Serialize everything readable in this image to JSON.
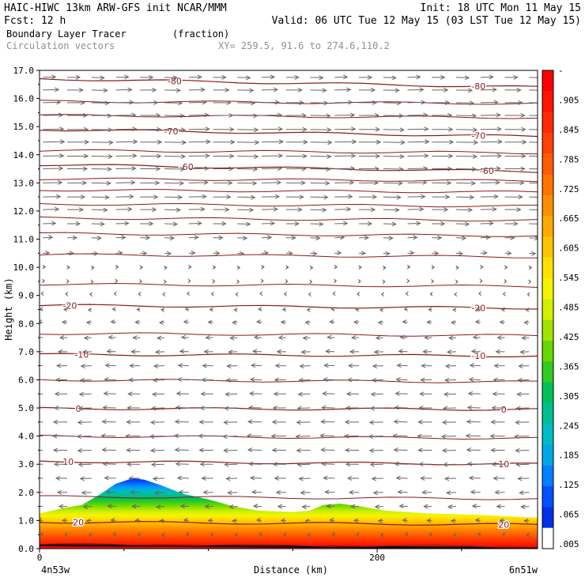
{
  "header": {
    "line1_left": "HAIC-HIWC 13km ARW-GFS init   NCAR/MMM",
    "line1_right": "Init: 18 UTC Mon 11 May 15",
    "line2_left": "Fcst:   12 h",
    "line2_right": "Valid: 06 UTC Tue 12 May 15 (03 LST Tue 12 May 15)",
    "field1": "Boundary Layer Tracer",
    "field1_units": "(fraction)",
    "field2": "Circulation vectors",
    "xy": "XY= 259.5, 91.6 to 274.6,110.2"
  },
  "chart_data": {
    "type": "heatmap",
    "title": "Boundary Layer Tracer",
    "units": "(fraction)",
    "xlabel": "Distance (km)",
    "ylabel": "Height (km)",
    "xlim": [
      0,
      295
    ],
    "ylim": [
      0,
      17
    ],
    "x_ticks": [
      {
        "value": 0,
        "label": "0"
      },
      {
        "value": 200,
        "label": "200"
      }
    ],
    "x_end_labels": {
      "left": "4n53w",
      "right": "6n51w"
    },
    "y_ticks": [
      "0.0",
      "1.0",
      "2.0",
      "3.0",
      "4.0",
      "5.0",
      "6.0",
      "7.0",
      "8.0",
      "9.0",
      "10.0",
      "11.0",
      "12.0",
      "13.0",
      "14.0",
      "15.0",
      "16.0",
      "17.0"
    ],
    "colorbar": {
      "labels": [
        "-",
        ".905",
        ".845",
        ".785",
        ".725",
        ".665",
        ".605",
        ".545",
        ".485",
        ".425",
        ".365",
        ".305",
        ".245",
        ".185",
        ".125",
        ".065",
        ".005"
      ],
      "colors": [
        "#ff0000",
        "#ff1400",
        "#ff2a00",
        "#ff4000",
        "#ff5a00",
        "#ff7400",
        "#ff8e00",
        "#ffaa00",
        "#ffc400",
        "#ffe000",
        "#f4f400",
        "#d2f000",
        "#a0e400",
        "#66d800",
        "#30cc20",
        "#00c05a",
        "#00c090",
        "#00bcc4",
        "#00a8e8",
        "#0080ff",
        "#0050ff",
        "#0030e8",
        "#ffffff"
      ]
    },
    "tracer_top_profile": [
      [
        0,
        1.25
      ],
      [
        15,
        1.45
      ],
      [
        25,
        1.55
      ],
      [
        35,
        1.9
      ],
      [
        45,
        2.3
      ],
      [
        55,
        2.5
      ],
      [
        62,
        2.45
      ],
      [
        72,
        2.25
      ],
      [
        85,
        1.95
      ],
      [
        100,
        1.75
      ],
      [
        115,
        1.5
      ],
      [
        130,
        1.35
      ],
      [
        150,
        1.3
      ],
      [
        160,
        1.35
      ],
      [
        168,
        1.55
      ],
      [
        178,
        1.6
      ],
      [
        190,
        1.5
      ],
      [
        205,
        1.35
      ],
      [
        230,
        1.25
      ],
      [
        260,
        1.2
      ],
      [
        295,
        1.1
      ]
    ],
    "temperature_contours": [
      {
        "label": "-80",
        "y_left": 16.7,
        "y_right": 16.4,
        "label_x": [
          80,
          260
        ]
      },
      {
        "label": "-70",
        "y_left": 14.9,
        "y_right": 14.65,
        "label_x": [
          78,
          260
        ]
      },
      {
        "label": "-60",
        "y_left": 13.65,
        "y_right": 13.4,
        "label_x": [
          87,
          265
        ]
      },
      {
        "label": "-20",
        "y_left": 8.65,
        "y_right": 8.55,
        "label_x": [
          18,
          260
        ]
      },
      {
        "label": "-10",
        "y_left": 6.9,
        "y_right": 6.85,
        "label_x": [
          25,
          260
        ]
      },
      {
        "label": "0",
        "y_left": 4.98,
        "y_right": 4.95,
        "label_x": [
          23,
          275
        ]
      },
      {
        "label": "10",
        "y_left": 3.1,
        "y_right": 3.0,
        "label_x": [
          17,
          275
        ]
      },
      {
        "label": "20",
        "y_left": 0.95,
        "y_right": 0.85,
        "label_x": [
          23,
          275
        ]
      }
    ],
    "extra_contour_heights": [
      0.15,
      1.85,
      4.0,
      6.0,
      7.65,
      9.4,
      10.45,
      11.2,
      11.75,
      12.25,
      12.75,
      13.15,
      14.15,
      15.4,
      15.9
    ],
    "wind_rows": [
      {
        "height": 16.75,
        "u": 0.8
      },
      {
        "height": 16.3,
        "u": 1.0
      },
      {
        "height": 15.85,
        "u": 1.1
      },
      {
        "height": 15.4,
        "u": 1.25
      },
      {
        "height": 14.9,
        "u": 1.3
      },
      {
        "height": 14.45,
        "u": 1.35
      },
      {
        "height": 13.95,
        "u": 1.3
      },
      {
        "height": 13.5,
        "u": 1.25
      },
      {
        "height": 13.0,
        "u": 1.2
      },
      {
        "height": 12.5,
        "u": 1.1
      },
      {
        "height": 12.05,
        "u": 1.0
      },
      {
        "height": 11.55,
        "u": 0.8
      },
      {
        "height": 11.05,
        "u": 0.6
      },
      {
        "height": 10.5,
        "u": 0.4
      },
      {
        "height": 10.0,
        "u": 0.15
      },
      {
        "height": 9.5,
        "u": 0.05
      },
      {
        "height": 9.05,
        "u": -0.05
      },
      {
        "height": 8.5,
        "u": -0.2
      },
      {
        "height": 8.05,
        "u": -0.3
      },
      {
        "height": 7.5,
        "u": -0.45
      },
      {
        "height": 7.0,
        "u": -0.55
      },
      {
        "height": 6.5,
        "u": -0.65
      },
      {
        "height": 6.0,
        "u": -0.7
      },
      {
        "height": 5.5,
        "u": -0.75
      },
      {
        "height": 5.0,
        "u": -0.8
      },
      {
        "height": 4.5,
        "u": -0.85
      },
      {
        "height": 4.0,
        "u": -0.9
      },
      {
        "height": 3.5,
        "u": -0.85
      },
      {
        "height": 3.0,
        "u": -0.8
      },
      {
        "height": 2.5,
        "u": -0.7
      },
      {
        "height": 2.0,
        "u": -0.6
      },
      {
        "height": 1.5,
        "u": -0.5
      },
      {
        "height": 1.0,
        "u": -0.3
      },
      {
        "height": 0.5,
        "u": -0.15
      }
    ]
  }
}
